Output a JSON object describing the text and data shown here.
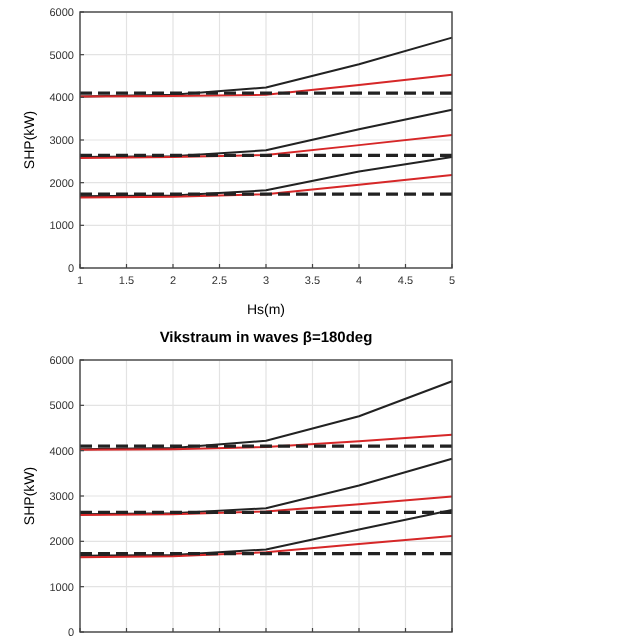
{
  "chart_data": [
    {
      "type": "line",
      "xlabel": "Hs(m)",
      "ylabel": "SHP(kW)",
      "x": [
        1,
        2,
        3,
        4,
        5
      ],
      "xlim": [
        1,
        5
      ],
      "xticks": [
        1,
        1.5,
        2,
        2.5,
        3,
        3.5,
        4,
        4.5,
        5
      ],
      "ylim": [
        0,
        6000
      ],
      "yticks": [
        0,
        1000,
        2000,
        3000,
        4000,
        5000,
        6000
      ],
      "grid": true,
      "series": [
        {
          "color": "#222222",
          "values": [
            4020,
            4060,
            4230,
            4775,
            5400
          ]
        },
        {
          "color": "#d62728",
          "values": [
            4020,
            4030,
            4060,
            4290,
            4530
          ]
        },
        {
          "color": "#222222",
          "line_style": "dashed",
          "values": [
            4100,
            4100,
            4100,
            4100,
            4100
          ]
        },
        {
          "color": "#222222",
          "values": [
            2600,
            2620,
            2760,
            3250,
            3710
          ]
        },
        {
          "color": "#d62728",
          "values": [
            2580,
            2600,
            2650,
            2880,
            3115
          ]
        },
        {
          "color": "#222222",
          "line_style": "dashed",
          "values": [
            2640,
            2640,
            2640,
            2640,
            2640
          ]
        },
        {
          "color": "#222222",
          "values": [
            1680,
            1700,
            1820,
            2260,
            2600
          ]
        },
        {
          "color": "#d62728",
          "values": [
            1650,
            1670,
            1730,
            1950,
            2180
          ]
        },
        {
          "color": "#222222",
          "line_style": "dashed",
          "values": [
            1730,
            1730,
            1730,
            1730,
            1730
          ]
        }
      ]
    },
    {
      "type": "line",
      "title": "Vikstraum in waves β=180deg",
      "ylabel": "SHP(kW)",
      "x": [
        1,
        2,
        3,
        4,
        5
      ],
      "xlim": [
        1,
        5
      ],
      "xticks": [
        1,
        1.5,
        2,
        2.5,
        3,
        3.5,
        4,
        4.5,
        5
      ],
      "ylim": [
        0,
        6000
      ],
      "yticks": [
        0,
        1000,
        2000,
        3000,
        4000,
        5000,
        6000
      ],
      "grid": true,
      "tick_labels": "y",
      "series": [
        {
          "color": "#222222",
          "values": [
            4030,
            4060,
            4220,
            4760,
            5530
          ]
        },
        {
          "color": "#d62728",
          "values": [
            4020,
            4030,
            4080,
            4210,
            4350
          ]
        },
        {
          "color": "#222222",
          "line_style": "dashed",
          "values": [
            4100,
            4100,
            4100,
            4100,
            4100
          ]
        },
        {
          "color": "#222222",
          "values": [
            2600,
            2620,
            2730,
            3230,
            3820
          ]
        },
        {
          "color": "#d62728",
          "values": [
            2580,
            2600,
            2660,
            2820,
            2990
          ]
        },
        {
          "color": "#222222",
          "line_style": "dashed",
          "values": [
            2640,
            2640,
            2640,
            2640,
            2640
          ]
        },
        {
          "color": "#222222",
          "values": [
            1680,
            1700,
            1820,
            2260,
            2690
          ]
        },
        {
          "color": "#d62728",
          "values": [
            1650,
            1670,
            1760,
            1940,
            2120
          ]
        },
        {
          "color": "#222222",
          "line_style": "dashed",
          "values": [
            1730,
            1730,
            1730,
            1730,
            1730
          ]
        }
      ]
    }
  ]
}
